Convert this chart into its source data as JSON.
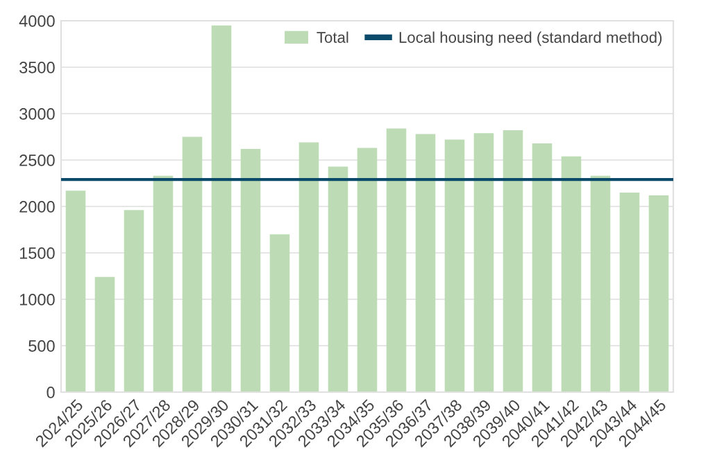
{
  "chart_data": {
    "type": "bar",
    "categories": [
      "2024/25",
      "2025/26",
      "2026/27",
      "2027/28",
      "2028/29",
      "2029/30",
      "2030/31",
      "2031/32",
      "2032/33",
      "2033/34",
      "2034/35",
      "2035/36",
      "2036/37",
      "2037/38",
      "2038/39",
      "2039/40",
      "2040/41",
      "2041/42",
      "2042/43",
      "2043/44",
      "2044/45"
    ],
    "series": [
      {
        "name": "Total",
        "color": "#bddcb5",
        "values": [
          2170,
          1240,
          1960,
          2330,
          2750,
          3950,
          2620,
          1700,
          2690,
          2430,
          2630,
          2840,
          2780,
          2720,
          2790,
          2820,
          2680,
          2540,
          2330,
          2150,
          2120
        ]
      }
    ],
    "ref_lines": [
      {
        "axis": "y",
        "value": 2290,
        "label": "Local housing need (standard method)",
        "color": "#0b4a6b"
      }
    ],
    "ylim": [
      0,
      4000
    ],
    "yticks": [
      0,
      500,
      1000,
      1500,
      2000,
      2500,
      3000,
      3500,
      4000
    ],
    "grid": "y",
    "legend": "top right"
  }
}
